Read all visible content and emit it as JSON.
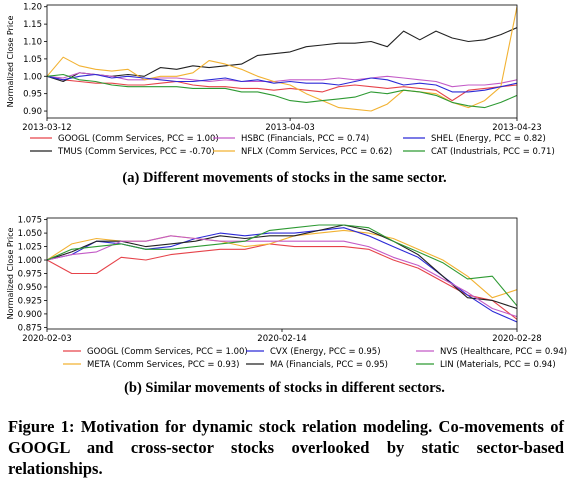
{
  "chart_data": [
    {
      "type": "line",
      "ylabel": "Normalized Close Price",
      "xlabel": "",
      "ylim": [
        0.88,
        1.205
      ],
      "yticks": [
        0.9,
        0.95,
        1.0,
        1.05,
        1.1,
        1.15,
        1.2
      ],
      "ytick_labels": [
        "0.90",
        "0.95",
        "1.00",
        "1.05",
        "1.10",
        "1.15",
        "1.20"
      ],
      "xlim": [
        0,
        29
      ],
      "xticks": [
        {
          "x": 0,
          "label": "2013-03-12"
        },
        {
          "x": 15,
          "label": "2013-04-03"
        },
        {
          "x": 29,
          "label": "2013-04-23"
        }
      ],
      "grid": false,
      "legend_placement": "below",
      "series": [
        {
          "name": "GOOGL (Comm Services, PCC = 1.00)",
          "color": "#e6434a",
          "values": [
            1.0,
            0.99,
            0.985,
            0.98,
            0.98,
            0.975,
            0.975,
            0.98,
            0.985,
            0.975,
            0.97,
            0.97,
            0.965,
            0.965,
            0.96,
            0.965,
            0.96,
            0.955,
            0.97,
            0.975,
            0.97,
            0.965,
            0.97,
            0.965,
            0.96,
            0.93,
            0.96,
            0.965,
            0.97,
            0.975
          ]
        },
        {
          "name": "TMUS (Comm Services, PCC = -0.70)",
          "color": "#222222",
          "values": [
            1.0,
            0.985,
            1.01,
            1.005,
            1.0,
            1.005,
            1.0,
            1.025,
            1.02,
            1.03,
            1.025,
            1.03,
            1.035,
            1.06,
            1.065,
            1.07,
            1.085,
            1.09,
            1.095,
            1.095,
            1.1,
            1.085,
            1.13,
            1.105,
            1.13,
            1.11,
            1.1,
            1.105,
            1.12,
            1.14
          ]
        },
        {
          "name": "HSBC (Financials, PCC = 0.74)",
          "color": "#c35bc7",
          "values": [
            1.0,
            0.995,
            1.01,
            1.005,
            1.0,
            0.99,
            0.99,
            0.995,
            0.995,
            0.99,
            0.985,
            0.99,
            0.985,
            0.985,
            0.985,
            0.99,
            0.99,
            0.99,
            0.995,
            0.99,
            0.995,
            1.0,
            0.995,
            0.99,
            0.985,
            0.97,
            0.975,
            0.975,
            0.98,
            0.99
          ]
        },
        {
          "name": "NFLX (Comm Services, PCC = 0.62)",
          "color": "#f2b233",
          "values": [
            1.0,
            1.055,
            1.03,
            1.02,
            1.015,
            1.02,
            0.99,
            1.0,
            1.0,
            1.01,
            1.045,
            1.035,
            1.02,
            1.0,
            0.985,
            0.975,
            0.95,
            0.93,
            0.91,
            0.905,
            0.9,
            0.92,
            0.96,
            0.955,
            0.95,
            0.925,
            0.91,
            0.93,
            0.97,
            1.2
          ]
        },
        {
          "name": "SHEL (Energy, PCC = 0.82)",
          "color": "#2c2ad6",
          "values": [
            1.0,
            0.99,
            1.0,
            1.005,
            0.995,
            1.0,
            0.995,
            0.99,
            0.985,
            0.985,
            0.99,
            0.995,
            0.985,
            0.99,
            0.98,
            0.985,
            0.98,
            0.98,
            0.975,
            0.985,
            0.995,
            0.99,
            0.975,
            0.98,
            0.975,
            0.955,
            0.955,
            0.96,
            0.97,
            0.98
          ]
        },
        {
          "name": "CAT (Industrials, PCC = 0.71)",
          "color": "#2e9a33",
          "values": [
            1.0,
            1.005,
            0.99,
            0.985,
            0.975,
            0.97,
            0.97,
            0.97,
            0.97,
            0.965,
            0.965,
            0.965,
            0.955,
            0.955,
            0.945,
            0.93,
            0.925,
            0.93,
            0.935,
            0.94,
            0.955,
            0.95,
            0.96,
            0.955,
            0.945,
            0.925,
            0.915,
            0.91,
            0.925,
            0.945
          ]
        }
      ],
      "subcaption": "(a) Different movements of stocks in the same sector."
    },
    {
      "type": "line",
      "ylabel": "Normalized Close Price",
      "xlabel": "",
      "ylim": [
        0.872,
        1.078
      ],
      "yticks": [
        0.875,
        0.9,
        0.925,
        0.95,
        0.975,
        1.0,
        1.025,
        1.05,
        1.075
      ],
      "ytick_labels": [
        "0.875",
        "0.900",
        "0.925",
        "0.950",
        "0.975",
        "1.000",
        "1.025",
        "1.050",
        "1.075"
      ],
      "xlim": [
        0,
        18
      ],
      "xticks": [
        {
          "x": 0,
          "label": "2020-02-03"
        },
        {
          "x": 9,
          "label": "2020-02-14"
        },
        {
          "x": 18,
          "label": "2020-02-28"
        }
      ],
      "grid": false,
      "legend_placement": "below",
      "series": [
        {
          "name": "GOOGL (Comm Services, PCC = 1.00)",
          "color": "#e6434a",
          "values": [
            1.0,
            0.975,
            0.975,
            1.005,
            1.0,
            1.01,
            1.015,
            1.02,
            1.02,
            1.03,
            1.025,
            1.025,
            1.025,
            1.02,
            1.0,
            0.985,
            0.96,
            0.935,
            0.925,
            0.89
          ]
        },
        {
          "name": "META (Comm Services, PCC = 0.93)",
          "color": "#f2b233",
          "values": [
            1.0,
            1.03,
            1.04,
            1.035,
            1.035,
            1.045,
            1.04,
            1.035,
            1.025,
            1.03,
            1.045,
            1.05,
            1.055,
            1.05,
            1.04,
            1.02,
            1.0,
            0.97,
            0.93,
            0.945
          ]
        },
        {
          "name": "CVX (Energy, PCC = 0.95)",
          "color": "#2c2ad6",
          "values": [
            1.0,
            1.01,
            1.035,
            1.03,
            1.02,
            1.025,
            1.04,
            1.05,
            1.045,
            1.05,
            1.05,
            1.055,
            1.06,
            1.045,
            1.025,
            1.005,
            0.97,
            0.935,
            0.905,
            0.885
          ]
        },
        {
          "name": "MA (Financials, PCC = 0.95)",
          "color": "#222222",
          "values": [
            1.0,
            1.015,
            1.035,
            1.035,
            1.025,
            1.03,
            1.035,
            1.045,
            1.04,
            1.045,
            1.045,
            1.055,
            1.065,
            1.055,
            1.035,
            1.01,
            0.97,
            0.93,
            0.925,
            0.91
          ]
        },
        {
          "name": "NVS (Healthcare, PCC = 0.94)",
          "color": "#c35bc7",
          "values": [
            1.0,
            1.01,
            1.015,
            1.035,
            1.035,
            1.045,
            1.04,
            1.035,
            1.035,
            1.035,
            1.035,
            1.035,
            1.035,
            1.025,
            1.005,
            0.99,
            0.965,
            0.94,
            0.91,
            0.895
          ]
        },
        {
          "name": "LIN (Materials, PCC = 0.94)",
          "color": "#2e9a33",
          "values": [
            1.0,
            1.02,
            1.025,
            1.03,
            1.02,
            1.02,
            1.025,
            1.03,
            1.035,
            1.055,
            1.06,
            1.065,
            1.065,
            1.06,
            1.035,
            1.015,
            0.995,
            0.965,
            0.97,
            0.915
          ]
        }
      ],
      "subcaption": "(b) Similar movements of stocks in different sectors."
    }
  ],
  "figure_caption": "Figure 1: Motivation for dynamic stock relation modeling. Co-movements of GOOGL and cross-sector stocks overlooked by static sector-based relationships."
}
